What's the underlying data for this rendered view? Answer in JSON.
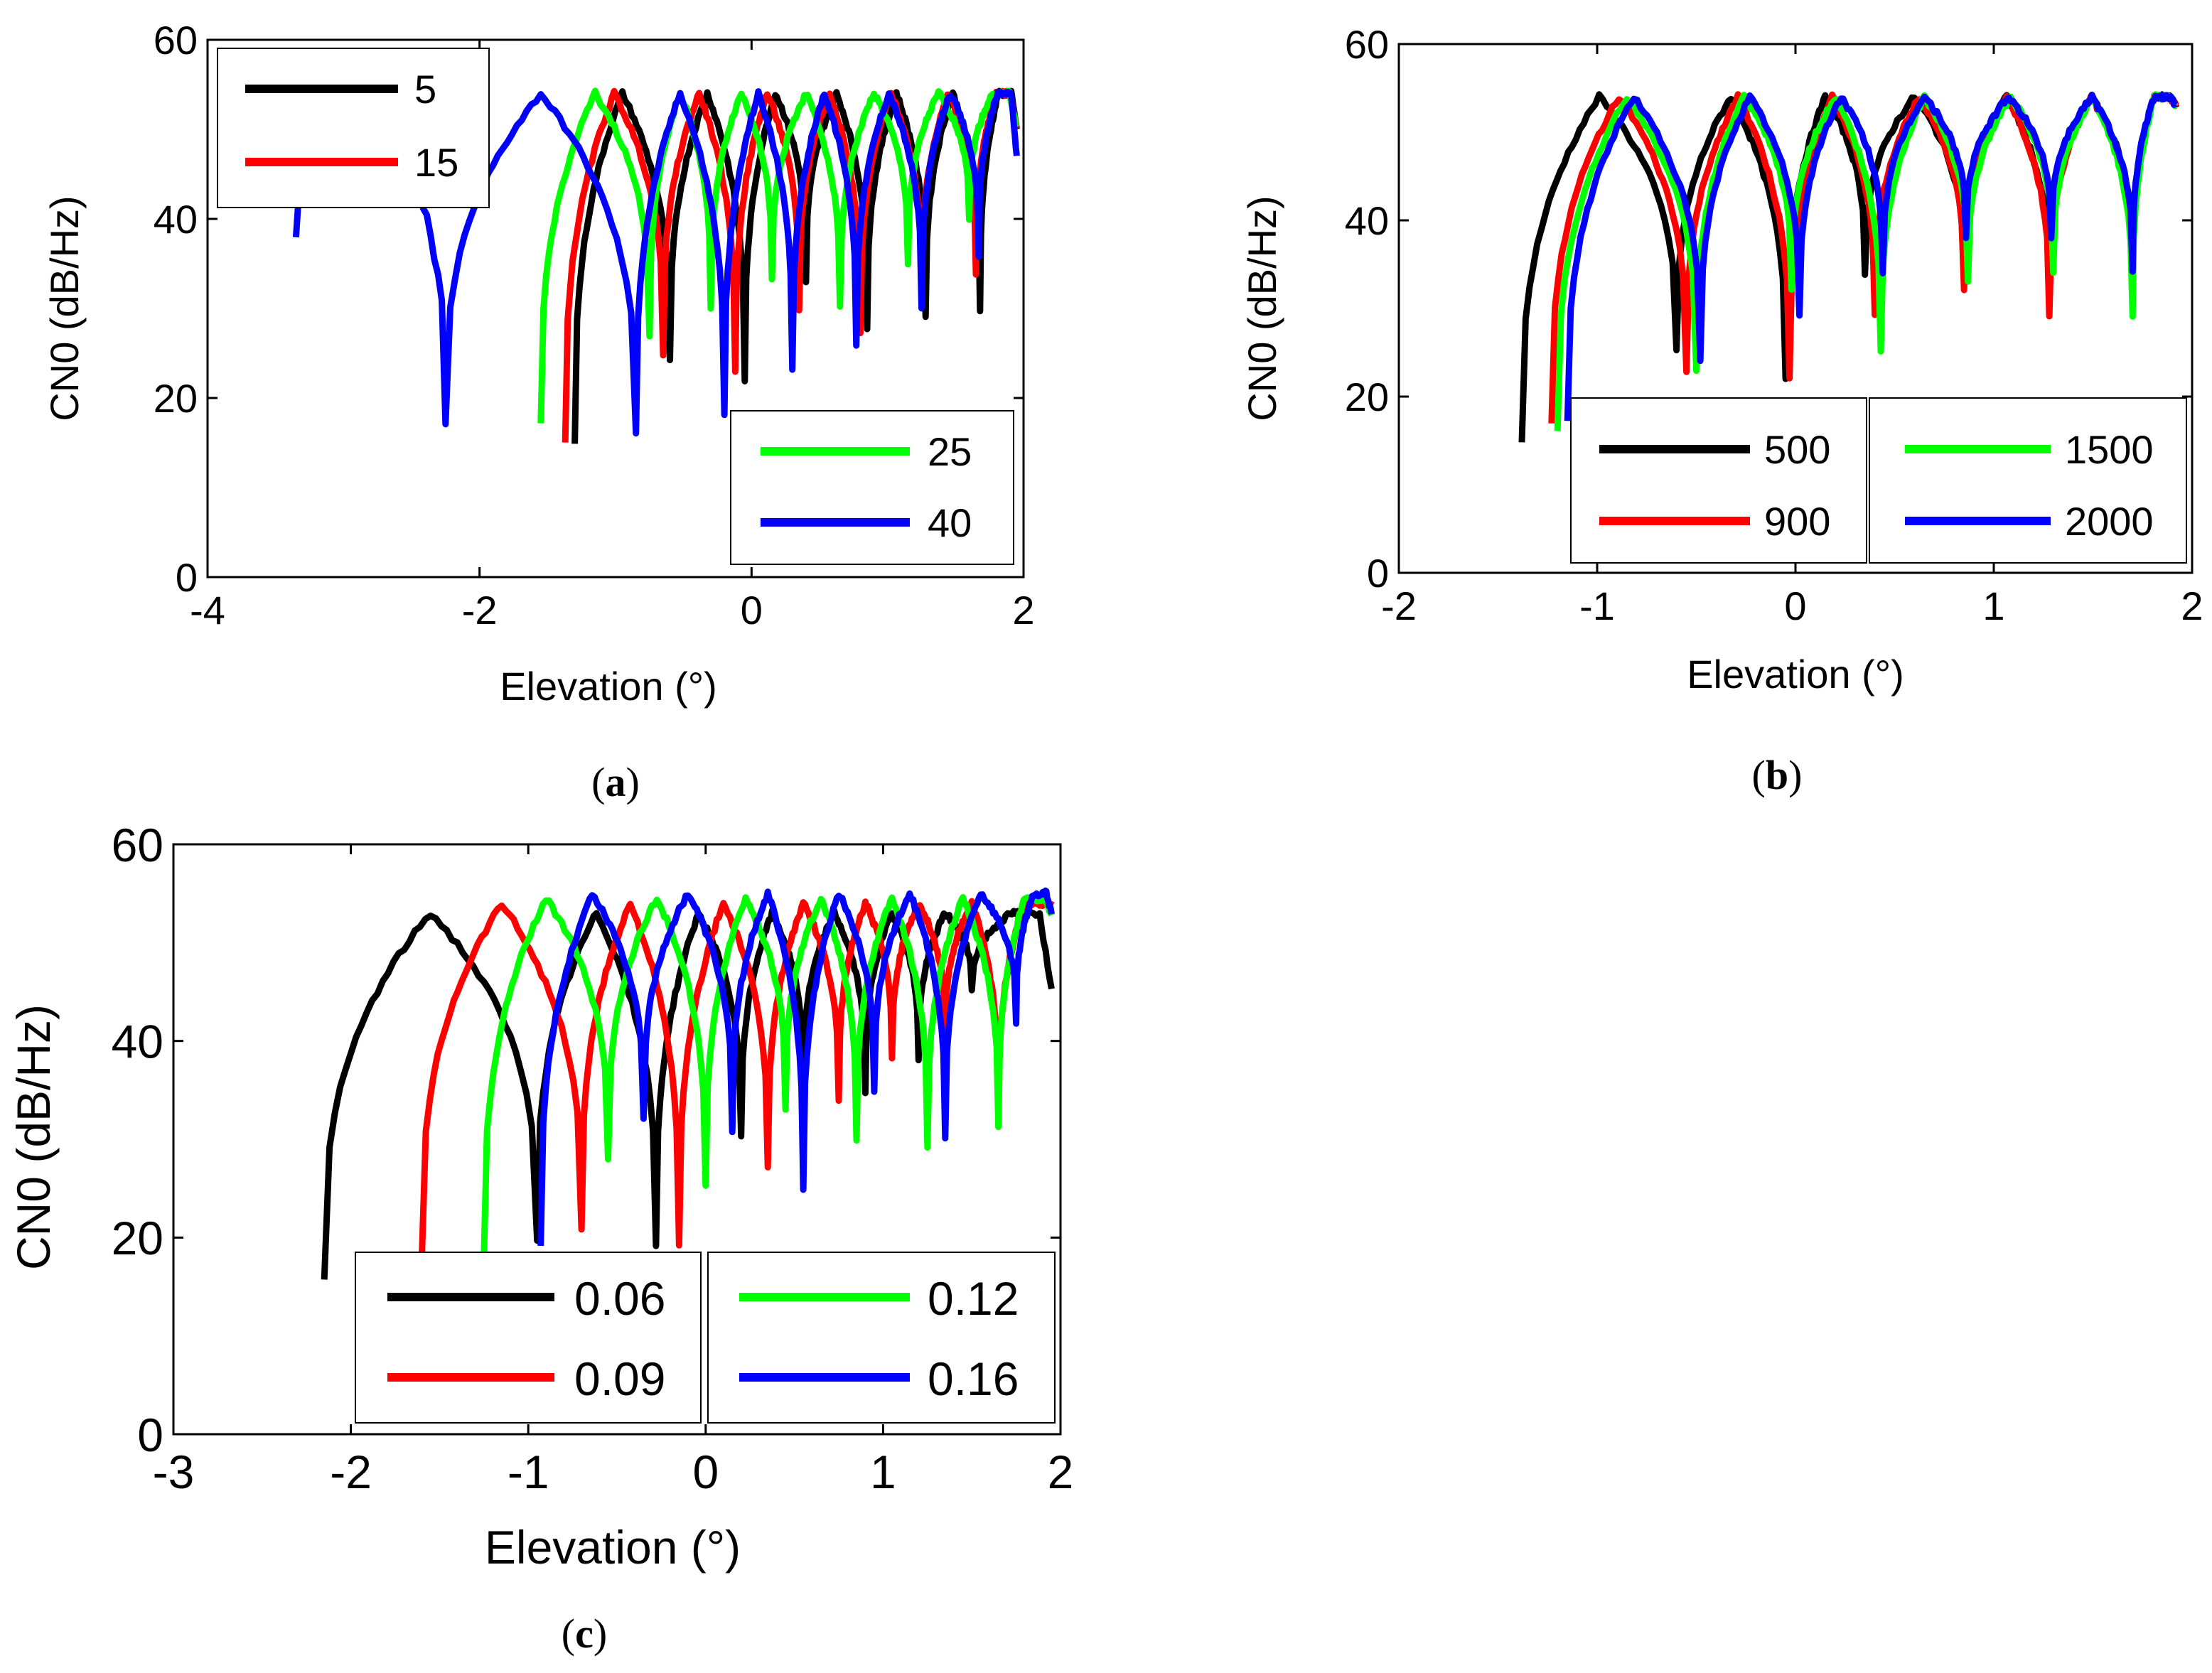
{
  "colors": {
    "c1": "#000000",
    "c2": "#ff0000",
    "c3": "#00ff00",
    "c4": "#0000ff"
  },
  "chart_data": [
    {
      "type": "line",
      "panel_caption": "a",
      "xlabel": "Elevation (°)",
      "ylabel": "CN0 (dB/Hz)",
      "xlim": [
        -4,
        2
      ],
      "ylim": [
        0,
        60
      ],
      "xticks": [
        "-4",
        "-2",
        "0",
        "2"
      ],
      "yticks": [
        "0",
        "20",
        "40",
        "60"
      ],
      "legend_groups": [
        {
          "placement": "top-left",
          "entries": [
            {
              "label": "5",
              "color": "c1"
            },
            {
              "label": "15",
              "color": "c2"
            }
          ]
        },
        {
          "placement": "bottom-right",
          "entries": [
            {
              "label": "25",
              "color": "c3"
            },
            {
              "label": "40",
              "color": "c4"
            }
          ]
        }
      ],
      "series": [
        {
          "name": "5",
          "color": "c1",
          "start": -1.3,
          "start_value": 15,
          "nulls": [
            -0.6,
            -0.05,
            0.4,
            0.85,
            1.28,
            1.68
          ],
          "null_values": [
            24,
            22,
            33,
            28,
            29,
            30
          ],
          "peak": 54,
          "end": 1.95,
          "end_value": 50
        },
        {
          "name": "15",
          "color": "c2",
          "start": -1.37,
          "start_value": 15,
          "nulls": [
            -0.65,
            -0.12,
            0.35,
            0.8,
            1.25,
            1.65
          ],
          "null_values": [
            25,
            23,
            30,
            27,
            31,
            34
          ],
          "peak": 54,
          "end": 1.95,
          "end_value": 50
        },
        {
          "name": "25",
          "color": "c3",
          "start": -1.55,
          "start_value": 17,
          "nulls": [
            -0.75,
            -0.3,
            0.15,
            0.65,
            1.15,
            1.6
          ],
          "null_values": [
            27,
            30,
            33,
            30,
            35,
            40
          ],
          "peak": 54,
          "end": 1.95,
          "end_value": 50
        },
        {
          "name": "40",
          "color": "c4",
          "start": -3.35,
          "start_value": 39,
          "nulls": [
            -2.25,
            -0.85,
            -0.2,
            0.3,
            0.77,
            1.25,
            1.67
          ],
          "null_values": [
            17,
            16,
            18,
            23,
            26,
            30,
            36
          ],
          "peak": 54,
          "end": 1.95,
          "end_value": 47
        }
      ]
    },
    {
      "type": "line",
      "panel_caption": "b",
      "xlabel": "Elevation (°)",
      "ylabel": "CN0 (dB/Hz)",
      "xlim": [
        -2,
        2
      ],
      "ylim": [
        0,
        60
      ],
      "xticks": [
        "-2",
        "-1",
        "0",
        "1",
        "2"
      ],
      "yticks": [
        "0",
        "20",
        "40",
        "60"
      ],
      "legend_groups": [
        {
          "placement": "bottom-center",
          "entries": [
            {
              "label": "500",
              "color": "c1"
            },
            {
              "label": "900",
              "color": "c2"
            }
          ]
        },
        {
          "placement": "bottom-right",
          "entries": [
            {
              "label": "1500",
              "color": "c3"
            },
            {
              "label": "2000",
              "color": "c4"
            }
          ]
        }
      ],
      "series": [
        {
          "name": "500",
          "color": "c1",
          "start": -1.38,
          "start_value": 15,
          "nulls": [
            -0.6,
            -0.05,
            0.35,
            0.85,
            1.28,
            1.7
          ],
          "null_values": [
            25,
            22,
            34,
            33,
            30,
            34
          ],
          "peak": 54,
          "end": 1.92,
          "end_value": 53
        },
        {
          "name": "900",
          "color": "c2",
          "start": -1.23,
          "start_value": 17,
          "nulls": [
            -0.55,
            -0.03,
            0.4,
            0.85,
            1.28,
            1.7
          ],
          "null_values": [
            23,
            22,
            29,
            32,
            29,
            33
          ],
          "peak": 54,
          "end": 1.92,
          "end_value": 53
        },
        {
          "name": "1500",
          "color": "c3",
          "start": -1.2,
          "start_value": 16,
          "nulls": [
            -0.5,
            -0.02,
            0.43,
            0.87,
            1.3,
            1.7
          ],
          "null_values": [
            23,
            32,
            25,
            33,
            34,
            29
          ],
          "peak": 54,
          "end": 1.92,
          "end_value": 53
        },
        {
          "name": "2000",
          "color": "c4",
          "start": -1.15,
          "start_value": 17,
          "nulls": [
            -0.48,
            0.02,
            0.44,
            0.86,
            1.29,
            1.7
          ],
          "null_values": [
            24,
            29,
            34,
            38,
            38,
            34
          ],
          "peak": 54,
          "end": 1.92,
          "end_value": 53
        }
      ]
    },
    {
      "type": "line",
      "panel_caption": "c",
      "xlabel": "Elevation (°)",
      "ylabel": "CN0 (dB/Hz)",
      "xlim": [
        -3,
        2
      ],
      "ylim": [
        0,
        60
      ],
      "xticks": [
        "-3",
        "-2",
        "-1",
        "0",
        "1",
        "2"
      ],
      "yticks": [
        "0",
        "20",
        "40",
        "60"
      ],
      "legend_groups": [
        {
          "placement": "bottom-center",
          "entries": [
            {
              "label": "0.06",
              "color": "c1"
            },
            {
              "label": "0.09",
              "color": "c2"
            }
          ]
        },
        {
          "placement": "bottom-right",
          "entries": [
            {
              "label": "0.12",
              "color": "c3"
            },
            {
              "label": "0.16",
              "color": "c4"
            }
          ]
        }
      ],
      "series": [
        {
          "name": "0.06",
          "color": "c1",
          "start": -2.15,
          "start_value": 16,
          "nulls": [
            -0.95,
            -0.28,
            0.2,
            0.55,
            0.9,
            1.2,
            1.5
          ],
          "null_values": [
            20,
            19,
            30,
            35,
            35,
            38,
            45
          ],
          "peak": 53,
          "end": 1.95,
          "end_value": 45
        },
        {
          "name": "0.09",
          "color": "c2",
          "start": -1.6,
          "start_value": 18,
          "nulls": [
            -0.7,
            -0.15,
            0.35,
            0.75,
            1.05,
            1.35,
            1.65
          ],
          "null_values": [
            21,
            19,
            27,
            34,
            38,
            40,
            32
          ],
          "peak": 54,
          "end": 1.95,
          "end_value": 54
        },
        {
          "name": "0.12",
          "color": "c3",
          "start": -1.25,
          "start_value": 18,
          "nulls": [
            -0.55,
            0.0,
            0.45,
            0.85,
            1.25,
            1.65
          ],
          "null_values": [
            28,
            25,
            33,
            30,
            29,
            31
          ],
          "peak": 54.5,
          "end": 1.95,
          "end_value": 53
        },
        {
          "name": "0.16",
          "color": "c4",
          "start": -0.93,
          "start_value": 19,
          "nulls": [
            -0.35,
            0.15,
            0.55,
            0.95,
            1.35,
            1.75
          ],
          "null_values": [
            32,
            31,
            25,
            35,
            30,
            42
          ],
          "peak": 55,
          "end": 1.95,
          "end_value": 53
        }
      ]
    }
  ]
}
